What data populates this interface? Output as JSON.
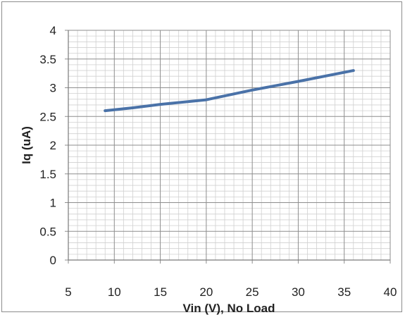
{
  "chart_data": {
    "type": "line",
    "title": "",
    "xlabel": "Vin (V), No Load",
    "ylabel": "Iq (uA)",
    "xlim": [
      5,
      40
    ],
    "ylim": [
      0,
      4
    ],
    "x_ticks": [
      5,
      10,
      15,
      20,
      25,
      30,
      35,
      40
    ],
    "y_ticks": [
      0,
      0.5,
      1,
      1.5,
      2,
      2.5,
      3,
      3.5,
      4
    ],
    "x_minor_step": 1,
    "y_minor_step": 0.1,
    "grid": true,
    "legend": "none",
    "series": [
      {
        "color": "#4a72a8",
        "points": [
          [
            9,
            2.6
          ],
          [
            12,
            2.65
          ],
          [
            15,
            2.71
          ],
          [
            20,
            2.79
          ],
          [
            25,
            2.96
          ],
          [
            30,
            3.11
          ],
          [
            36,
            3.3
          ]
        ]
      }
    ]
  }
}
